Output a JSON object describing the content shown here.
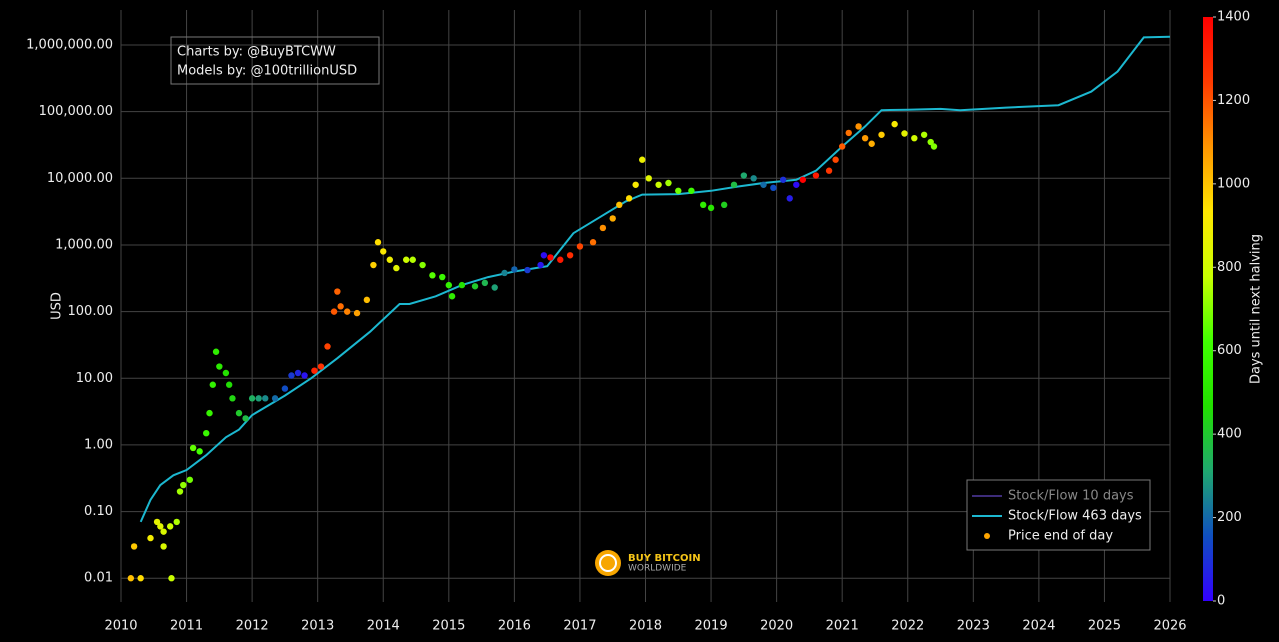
{
  "chart_data": {
    "type": "scatter",
    "ylabel": "USD",
    "colorbar_label": "Days until next halving",
    "log_y": true,
    "grid": true,
    "legend": "bottom-right",
    "xlim": [
      2010,
      2026
    ],
    "xticks": [
      2010,
      2011,
      2012,
      2013,
      2014,
      2015,
      2016,
      2017,
      2018,
      2019,
      2020,
      2021,
      2022,
      2023,
      2024,
      2025,
      2026
    ],
    "ylim": [
      0.0044,
      3350000
    ],
    "yticks": [
      0.01,
      {
        "value": 0.1,
        "label": "0.10"
      },
      {
        "value": 1,
        "label": "1.00"
      },
      {
        "value": 10,
        "label": "10.00"
      },
      {
        "value": 100,
        "label": "100.00"
      },
      {
        "value": 1000,
        "label": "1,000.00"
      },
      {
        "value": 10000,
        "label": "10,000.00"
      },
      {
        "value": 100000,
        "label": "100,000.00"
      },
      {
        "value": 1000000,
        "label": "1,000,000.00"
      }
    ],
    "clim": [
      0,
      1400
    ],
    "cticks": [
      0,
      200,
      400,
      600,
      800,
      1000,
      1200,
      1400
    ],
    "colorscale": [
      "#3300ff",
      "#0f4fc0",
      "#1fa870",
      "#22e000",
      "#40ff00",
      "#c8ff00",
      "#ffe600",
      "#ff9500",
      "#ff3a00",
      "#ff0000"
    ],
    "annotations": [
      "Charts by: @BuyBTCWW",
      "Models by: @100trillionUSD"
    ],
    "watermark": [
      "BUY BITCOIN",
      "WORLDWIDE"
    ],
    "series": [
      {
        "name": "Stock/Flow 10 days",
        "mode": "line",
        "color": "#3d2c7a",
        "visible": false
      },
      {
        "name": "Stock/Flow 463 days",
        "mode": "line",
        "color": "#1cb8d0",
        "x": [
          2010.3,
          2010.45,
          2010.6,
          2010.8,
          2011.0,
          2011.3,
          2011.6,
          2011.8,
          2012.0,
          2012.5,
          2012.9,
          2013.3,
          2013.8,
          2014.25,
          2014.4,
          2014.8,
          2015.2,
          2015.6,
          2016.0,
          2016.5,
          2016.9,
          2017.3,
          2017.7,
          2017.95,
          2018.5,
          2019.0,
          2019.4,
          2019.8,
          2020.3,
          2020.6,
          2021.0,
          2021.35,
          2021.6,
          2022.0,
          2022.5,
          2022.8,
          2023.5,
          2024.3,
          2024.8,
          2025.2,
          2025.6,
          2026.0
        ],
        "values": [
          0.07,
          0.15,
          0.25,
          0.35,
          0.42,
          0.7,
          1.3,
          1.7,
          2.8,
          5.5,
          10,
          20,
          50,
          130,
          130,
          170,
          250,
          330,
          400,
          480,
          1500,
          2600,
          4500,
          5700,
          5800,
          6500,
          7500,
          8500,
          9500,
          13000,
          30000,
          60000,
          105000,
          107000,
          110000,
          105000,
          115000,
          125000,
          200000,
          400000,
          1300000,
          1330000
        ]
      },
      {
        "name": "Price end of day",
        "mode": "markers",
        "color": "#ffa500",
        "x": [
          2010.15,
          2010.2,
          2010.3,
          2010.45,
          2010.55,
          2010.6,
          2010.65,
          2010.65,
          2010.75,
          2010.77,
          2010.85,
          2010.9,
          2010.95,
          2011.05,
          2011.1,
          2011.2,
          2011.3,
          2011.35,
          2011.4,
          2011.45,
          2011.5,
          2011.6,
          2011.65,
          2011.7,
          2011.8,
          2011.9,
          2012.0,
          2012.1,
          2012.2,
          2012.35,
          2012.5,
          2012.6,
          2012.7,
          2012.8,
          2012.95,
          2013.05,
          2013.15,
          2013.25,
          2013.3,
          2013.35,
          2013.45,
          2013.6,
          2013.75,
          2013.85,
          2013.92,
          2014.0,
          2014.1,
          2014.2,
          2014.35,
          2014.45,
          2014.6,
          2014.75,
          2014.9,
          2015.0,
          2015.05,
          2015.2,
          2015.4,
          2015.55,
          2015.7,
          2015.85,
          2016.0,
          2016.2,
          2016.4,
          2016.45,
          2016.55,
          2016.7,
          2016.85,
          2017.0,
          2017.2,
          2017.35,
          2017.5,
          2017.6,
          2017.75,
          2017.85,
          2017.95,
          2018.05,
          2018.2,
          2018.35,
          2018.5,
          2018.7,
          2018.88,
          2019.0,
          2019.2,
          2019.35,
          2019.5,
          2019.65,
          2019.8,
          2019.95,
          2020.1,
          2020.2,
          2020.3,
          2020.4,
          2020.6,
          2020.8,
          2020.9,
          2021.0,
          2021.1,
          2021.25,
          2021.35,
          2021.45,
          2021.6,
          2021.8,
          2021.95,
          2022.1,
          2022.25,
          2022.35,
          2022.4
        ],
        "values": [
          0.01,
          0.03,
          0.01,
          0.04,
          0.07,
          0.06,
          0.05,
          0.03,
          0.06,
          0.01,
          0.07,
          0.2,
          0.25,
          0.3,
          0.9,
          0.8,
          1.5,
          3,
          8,
          25,
          15,
          12,
          8,
          5,
          3,
          2.5,
          5,
          5,
          5,
          5,
          7,
          11,
          12,
          11,
          13,
          15,
          30,
          100,
          200,
          120,
          100,
          95,
          150,
          500,
          1100,
          800,
          600,
          450,
          600,
          600,
          500,
          350,
          330,
          250,
          170,
          250,
          240,
          270,
          230,
          380,
          430,
          420,
          500,
          700,
          650,
          600,
          700,
          950,
          1100,
          1800,
          2500,
          4000,
          5000,
          8000,
          19000,
          10000,
          8000,
          8500,
          6500,
          6500,
          4000,
          3600,
          4000,
          8000,
          11000,
          10000,
          8000,
          7200,
          9500,
          5000,
          8000,
          9500,
          11000,
          13000,
          19000,
          30000,
          48000,
          60000,
          40000,
          33000,
          45000,
          65000,
          47000,
          40000,
          45000,
          35000,
          30000
        ],
        "days": [
          1007,
          989,
          953,
          898,
          861,
          843,
          825,
          825,
          788,
          781,
          752,
          734,
          715,
          679,
          661,
          624,
          588,
          569,
          551,
          533,
          515,
          478,
          460,
          442,
          405,
          369,
          332,
          296,
          259,
          204,
          150,
          113,
          77,
          40,
          1303,
          1267,
          1230,
          1194,
          1176,
          1157,
          1121,
          1066,
          1011,
          975,
          949,
          920,
          883,
          847,
          792,
          756,
          701,
          646,
          591,
          555,
          537,
          482,
          409,
          354,
          299,
          245,
          190,
          117,
          44,
          26,
          1391,
          1336,
          1281,
          1226,
          1153,
          1098,
          1044,
          1007,
          953,
          916,
          880,
          843,
          789,
          734,
          679,
          606,
          540,
          496,
          423,
          369,
          314,
          259,
          204,
          150,
          95,
          58,
          22,
          1400,
          1332,
          1259,
          1223,
          1186,
          1150,
          1095,
          1077,
          1040,
          986,
          913,
          858,
          803,
          748,
          712,
          694
        ]
      }
    ]
  }
}
